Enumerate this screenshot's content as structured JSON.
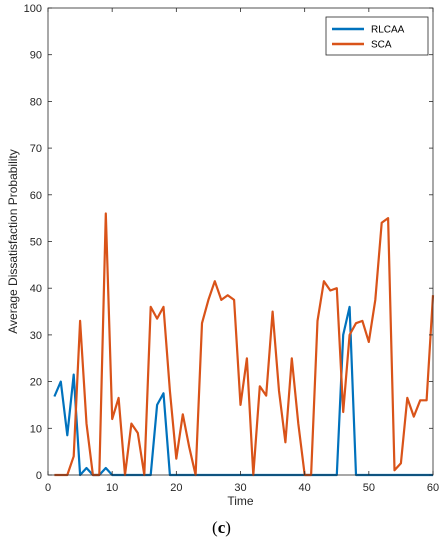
{
  "panel": {
    "open": "(",
    "letter": "c",
    "close": ")"
  },
  "chart_data": {
    "type": "line",
    "xlabel": "Time",
    "ylabel": "Average Dissatisfaction Probability",
    "xlim": [
      0,
      60
    ],
    "ylim": [
      0,
      100
    ],
    "xticks": [
      0,
      10,
      20,
      30,
      40,
      50,
      60
    ],
    "yticks": [
      0,
      10,
      20,
      30,
      40,
      50,
      60,
      70,
      80,
      90,
      100
    ],
    "grid": false,
    "legend_position": "top-right",
    "series": [
      {
        "name": "RLCAA",
        "color": "#0072BD",
        "x": [
          1,
          2,
          3,
          4,
          5,
          6,
          7,
          8,
          9,
          10,
          11,
          12,
          13,
          14,
          15,
          16,
          17,
          18,
          19,
          20,
          21,
          22,
          23,
          24,
          25,
          26,
          27,
          28,
          29,
          30,
          31,
          32,
          33,
          34,
          35,
          36,
          37,
          38,
          39,
          40,
          41,
          42,
          43,
          44,
          45,
          46,
          47,
          48,
          49,
          50,
          51,
          52,
          53,
          54,
          55,
          56,
          57,
          58,
          59,
          60
        ],
        "values": [
          16.8,
          20,
          8.5,
          21.5,
          0,
          1.5,
          0,
          0,
          1.5,
          0,
          0,
          0,
          0,
          0,
          0,
          0,
          15,
          17.5,
          0,
          0,
          0,
          0,
          0,
          0,
          0,
          0,
          0,
          0,
          0,
          0,
          0,
          0,
          0,
          0,
          0,
          0,
          0,
          0,
          0,
          0,
          0,
          0,
          0,
          0,
          0,
          30,
          36,
          0,
          0,
          0,
          0,
          0,
          0,
          0,
          0,
          0,
          0,
          0,
          0,
          0
        ]
      },
      {
        "name": "SCA",
        "color": "#D95319",
        "x": [
          1,
          2,
          3,
          4,
          5,
          6,
          7,
          8,
          9,
          10,
          11,
          12,
          13,
          14,
          15,
          16,
          17,
          18,
          19,
          20,
          21,
          22,
          23,
          24,
          25,
          26,
          27,
          28,
          29,
          30,
          31,
          32,
          33,
          34,
          35,
          36,
          37,
          38,
          39,
          40,
          41,
          42,
          43,
          44,
          45,
          46,
          47,
          48,
          49,
          50,
          51,
          52,
          53,
          54,
          55,
          56,
          57,
          58,
          59,
          60
        ],
        "values": [
          0,
          0,
          0,
          4,
          33,
          11,
          0,
          0,
          56,
          12,
          16.5,
          0,
          11,
          9,
          0,
          36,
          33.5,
          36,
          18,
          3.5,
          13,
          6,
          0,
          32.5,
          37.5,
          41.5,
          37.5,
          38.5,
          37.5,
          15,
          25,
          0,
          19,
          17,
          35,
          18,
          7,
          25,
          11,
          0,
          0,
          33,
          41.5,
          39.5,
          40,
          13.5,
          30,
          32.5,
          33,
          28.5,
          37.5,
          54,
          55,
          1,
          2.5,
          16.5,
          12.5,
          16,
          16,
          38.5
        ]
      }
    ]
  }
}
